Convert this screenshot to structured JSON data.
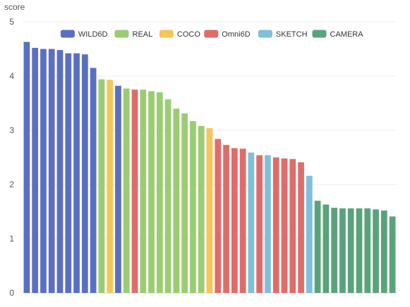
{
  "chart_data": {
    "type": "bar",
    "ylabel": "score",
    "ylim": [
      0,
      5
    ],
    "yticks": [
      "0",
      "1",
      "2",
      "3",
      "4",
      "5"
    ],
    "grid": true,
    "legend_position": "top-center",
    "series": [
      {
        "name": "WILD6D",
        "color": "#5b6fc2",
        "values": [
          4.63,
          4.52,
          4.5,
          4.5,
          4.48,
          4.42,
          4.42,
          4.4,
          4.15
        ]
      },
      {
        "name": "REAL",
        "color": "#9bcc72",
        "values": [
          3.94
        ]
      },
      {
        "name": "COCO",
        "color": "#f6c65b",
        "values": [
          3.93
        ]
      },
      {
        "name": "WILD6D",
        "color": "#5b6fc2",
        "values": [
          3.82
        ]
      },
      {
        "name": "REAL",
        "color": "#9bcc72",
        "values": [
          3.77
        ]
      },
      {
        "name": "Omni6D",
        "color": "#e06c6a",
        "values": [
          3.75
        ]
      },
      {
        "name": "REAL",
        "color": "#9bcc72",
        "values": [
          3.75,
          3.72,
          3.7,
          3.57,
          3.4,
          3.31,
          3.17,
          3.08
        ]
      },
      {
        "name": "COCO",
        "color": "#f6c65b",
        "values": [
          3.04
        ]
      },
      {
        "name": "Omni6D",
        "color": "#e06c6a",
        "values": [
          2.84,
          2.73,
          2.67,
          2.66
        ]
      },
      {
        "name": "SKETCH",
        "color": "#80bfdb",
        "values": [
          2.59
        ]
      },
      {
        "name": "Omni6D",
        "color": "#e06c6a",
        "values": [
          2.54
        ]
      },
      {
        "name": "SKETCH",
        "color": "#80bfdb",
        "values": [
          2.54
        ]
      },
      {
        "name": "Omni6D",
        "color": "#e06c6a",
        "values": [
          2.5,
          2.48,
          2.47,
          2.41
        ]
      },
      {
        "name": "SKETCH",
        "color": "#80bfdb",
        "values": [
          2.16
        ]
      },
      {
        "name": "CAMERA",
        "color": "#5aa37a",
        "values": [
          1.7,
          1.63,
          1.57,
          1.56,
          1.56,
          1.56,
          1.56,
          1.54,
          1.52,
          1.41
        ]
      }
    ],
    "legend": [
      {
        "name": "WILD6D",
        "color": "#5b6fc2"
      },
      {
        "name": "REAL",
        "color": "#9bcc72"
      },
      {
        "name": "COCO",
        "color": "#f6c65b"
      },
      {
        "name": "Omni6D",
        "color": "#e06c6a"
      },
      {
        "name": "SKETCH",
        "color": "#80bfdb"
      },
      {
        "name": "CAMERA",
        "color": "#5aa37a"
      }
    ]
  }
}
